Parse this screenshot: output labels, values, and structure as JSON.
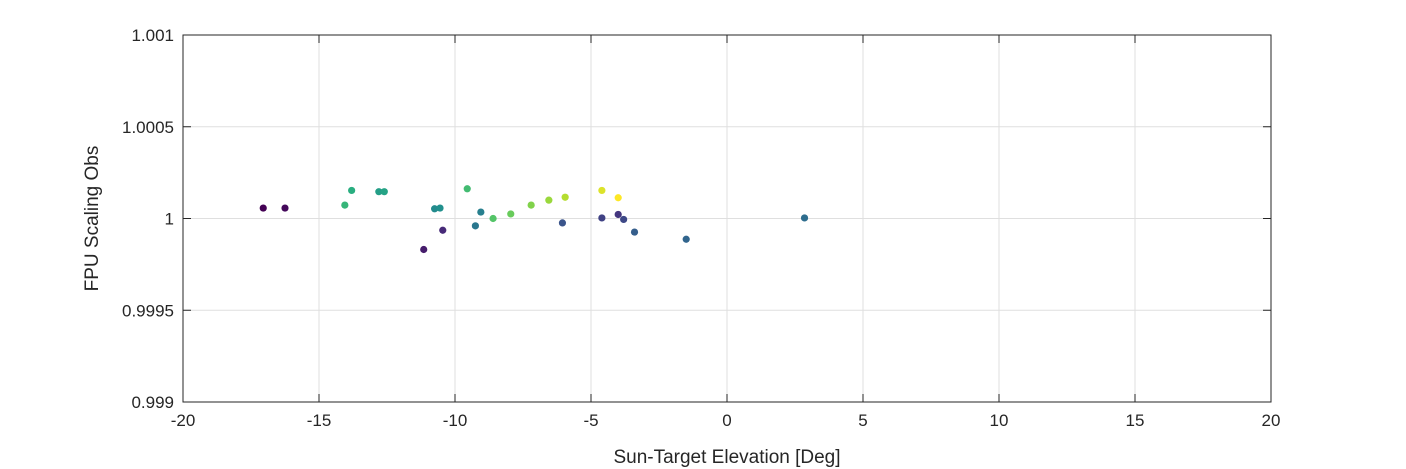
{
  "chart_data": {
    "type": "scatter",
    "title": "",
    "xlabel": "Sun-Target Elevation [Deg]",
    "ylabel": "FPU Scaling Obs",
    "xlim": [
      -20,
      20
    ],
    "ylim": [
      0.999,
      1.001
    ],
    "xticks": [
      -20,
      -15,
      -10,
      -5,
      0,
      5,
      10,
      15,
      20
    ],
    "xtick_labels": [
      "-20",
      "-15",
      "-10",
      "-5",
      "0",
      "5",
      "10",
      "15",
      "20"
    ],
    "yticks": [
      0.999,
      0.9995,
      1.0,
      1.0005,
      1.001
    ],
    "ytick_labels": [
      "0.999",
      "0.9995",
      "1",
      "1.0005",
      "1.001"
    ],
    "grid": true,
    "colormap": "viridis",
    "points": [
      {
        "x": -17.05,
        "y": 1.000057,
        "c": 0.0
      },
      {
        "x": -16.25,
        "y": 1.000057,
        "c": 0.02
      },
      {
        "x": -11.15,
        "y": 0.999831,
        "c": 0.08
      },
      {
        "x": -10.45,
        "y": 0.999936,
        "c": 0.12
      },
      {
        "x": -4.0,
        "y": 1.000022,
        "c": 0.16
      },
      {
        "x": -4.6,
        "y": 1.000003,
        "c": 0.2
      },
      {
        "x": -3.8,
        "y": 0.999995,
        "c": 0.22
      },
      {
        "x": -6.05,
        "y": 0.999976,
        "c": 0.26
      },
      {
        "x": -3.4,
        "y": 0.999926,
        "c": 0.3
      },
      {
        "x": -1.5,
        "y": 0.999887,
        "c": 0.33
      },
      {
        "x": 2.85,
        "y": 1.000003,
        "c": 0.36
      },
      {
        "x": -9.25,
        "y": 0.99996,
        "c": 0.4
      },
      {
        "x": -9.05,
        "y": 1.000035,
        "c": 0.43
      },
      {
        "x": -10.75,
        "y": 1.000053,
        "c": 0.48
      },
      {
        "x": -10.55,
        "y": 1.000057,
        "c": 0.5
      },
      {
        "x": -12.8,
        "y": 1.000146,
        "c": 0.56
      },
      {
        "x": -12.6,
        "y": 1.000146,
        "c": 0.58
      },
      {
        "x": -13.8,
        "y": 1.000153,
        "c": 0.63
      },
      {
        "x": -14.05,
        "y": 1.000073,
        "c": 0.66
      },
      {
        "x": -9.55,
        "y": 1.000162,
        "c": 0.69
      },
      {
        "x": -8.6,
        "y": 1.0,
        "c": 0.73
      },
      {
        "x": -7.95,
        "y": 1.000025,
        "c": 0.77
      },
      {
        "x": -7.2,
        "y": 1.000073,
        "c": 0.81
      },
      {
        "x": -6.55,
        "y": 1.0001,
        "c": 0.85
      },
      {
        "x": -5.95,
        "y": 1.000116,
        "c": 0.89
      },
      {
        "x": -4.6,
        "y": 1.000153,
        "c": 0.95
      },
      {
        "x": -4.0,
        "y": 1.000113,
        "c": 1.0
      }
    ]
  }
}
